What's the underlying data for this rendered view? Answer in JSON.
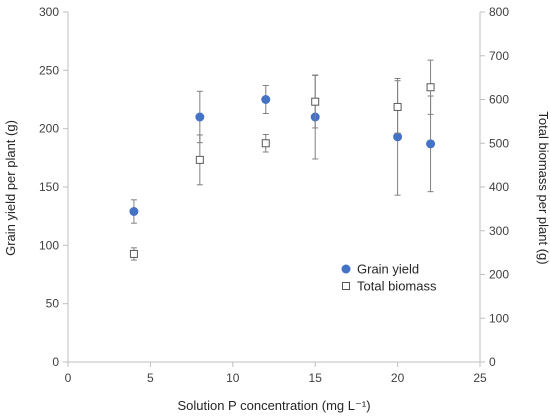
{
  "chart_data": {
    "type": "scatter",
    "x": [
      4,
      8,
      12,
      15,
      20,
      22
    ],
    "xlim": [
      0,
      25
    ],
    "xticks": [
      0,
      5,
      10,
      15,
      20,
      25
    ],
    "xlabel": "Solution P concentration (mg L⁻¹)",
    "ylabel": "Grain yield per plant (g)",
    "ylim": [
      0,
      300
    ],
    "yticks": [
      0,
      50,
      100,
      150,
      200,
      250,
      300
    ],
    "y2label": "Total biomass per plant (g)",
    "y2lim": [
      0,
      800
    ],
    "y2ticks": [
      0,
      100,
      200,
      300,
      400,
      500,
      600,
      700,
      800
    ],
    "grid": false,
    "legend_position": "right",
    "series": [
      {
        "name": "Grain yield",
        "axis": "left",
        "marker": "filled-circle",
        "color": "#4472C4",
        "values": [
          129,
          210,
          225,
          210,
          193,
          187
        ],
        "error": [
          10,
          22,
          12,
          36,
          50,
          41
        ]
      },
      {
        "name": "Total biomass",
        "axis": "right",
        "marker": "open-square",
        "color": "#595959",
        "values": [
          247,
          462,
          500,
          595,
          583,
          628
        ],
        "error": [
          14,
          57,
          20,
          60,
          60,
          62
        ]
      }
    ]
  }
}
